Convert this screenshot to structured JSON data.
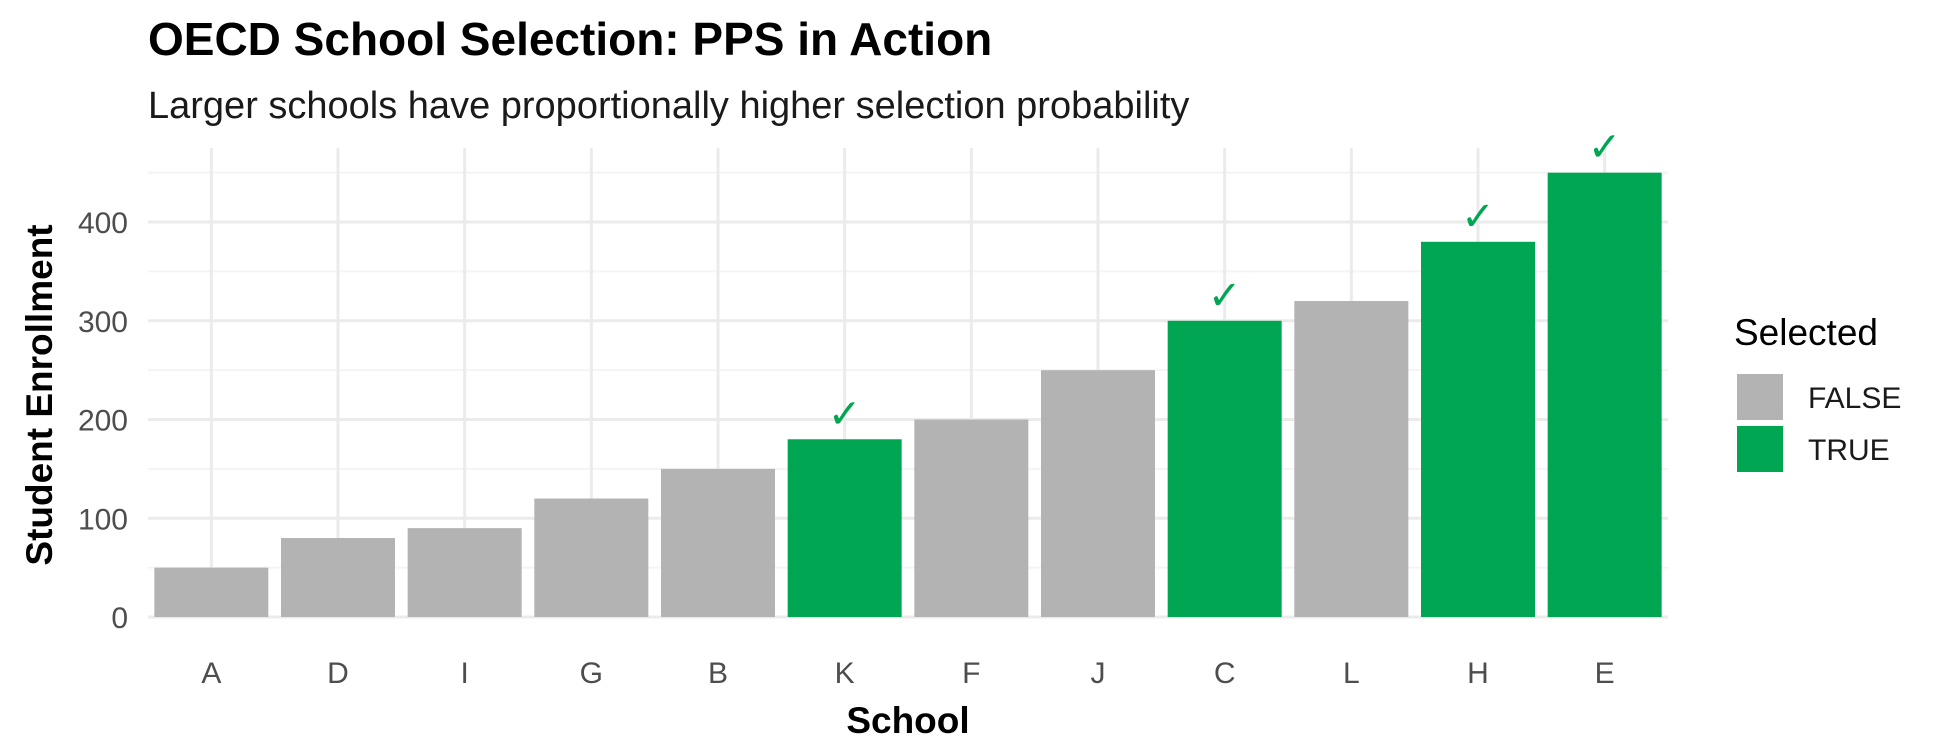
{
  "chart_data": {
    "type": "bar",
    "title": "OECD School Selection: PPS in Action",
    "subtitle": "Larger schools have proportionally higher selection probability",
    "xlabel": "School",
    "ylabel": "Student Enrollment",
    "categories": [
      "A",
      "D",
      "I",
      "G",
      "B",
      "K",
      "F",
      "J",
      "C",
      "L",
      "H",
      "E"
    ],
    "values": [
      50,
      80,
      90,
      120,
      150,
      180,
      200,
      250,
      300,
      320,
      380,
      450
    ],
    "selected": [
      false,
      false,
      false,
      false,
      false,
      true,
      false,
      false,
      true,
      false,
      true,
      true
    ],
    "ylim": [
      0,
      475
    ],
    "yticks": [
      0,
      100,
      200,
      300,
      400
    ],
    "ytick_labels": [
      "0",
      "100",
      "200",
      "300",
      "400"
    ],
    "grid": true,
    "selected_marker": "✓",
    "legend": {
      "title": "Selected",
      "position": "right",
      "entries": [
        {
          "label": "FALSE",
          "color": "#b3b3b3"
        },
        {
          "label": "TRUE",
          "color": "#00a651"
        }
      ]
    },
    "colors": {
      "false": "#b3b3b3",
      "true": "#00a651",
      "grid_major": "#ebebeb",
      "grid_minor": "#f4f4f4"
    }
  }
}
